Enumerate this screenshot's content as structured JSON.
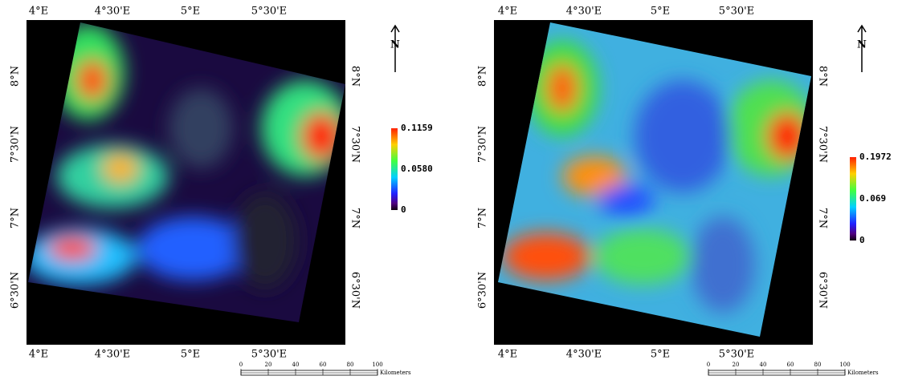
{
  "maps": [
    {
      "lon_labels": [
        "4°E",
        "4°30'E",
        "5°E",
        "5°30'E"
      ],
      "lat_labels": [
        "8°N",
        "7°30'N",
        "7°N",
        "6°30'N"
      ],
      "north": "N",
      "legend": {
        "labels": [
          "0.1159",
          "0.0580",
          "0"
        ]
      },
      "scale_bar": {
        "labels": [
          "0",
          "20",
          "40",
          "60",
          "80",
          "100"
        ],
        "unit": "Kilometers"
      }
    },
    {
      "lon_labels": [
        "4°E",
        "4°30'E",
        "5°E",
        "5°30'E"
      ],
      "lat_labels": [
        "8°N",
        "7°30'N",
        "7°N",
        "6°30'N"
      ],
      "north": "N",
      "legend": {
        "labels": [
          "0.1972",
          "0.069",
          "0"
        ]
      },
      "scale_bar": {
        "labels": [
          "0",
          "20",
          "40",
          "60",
          "80",
          "100"
        ],
        "unit": "Kilometers"
      }
    }
  ]
}
